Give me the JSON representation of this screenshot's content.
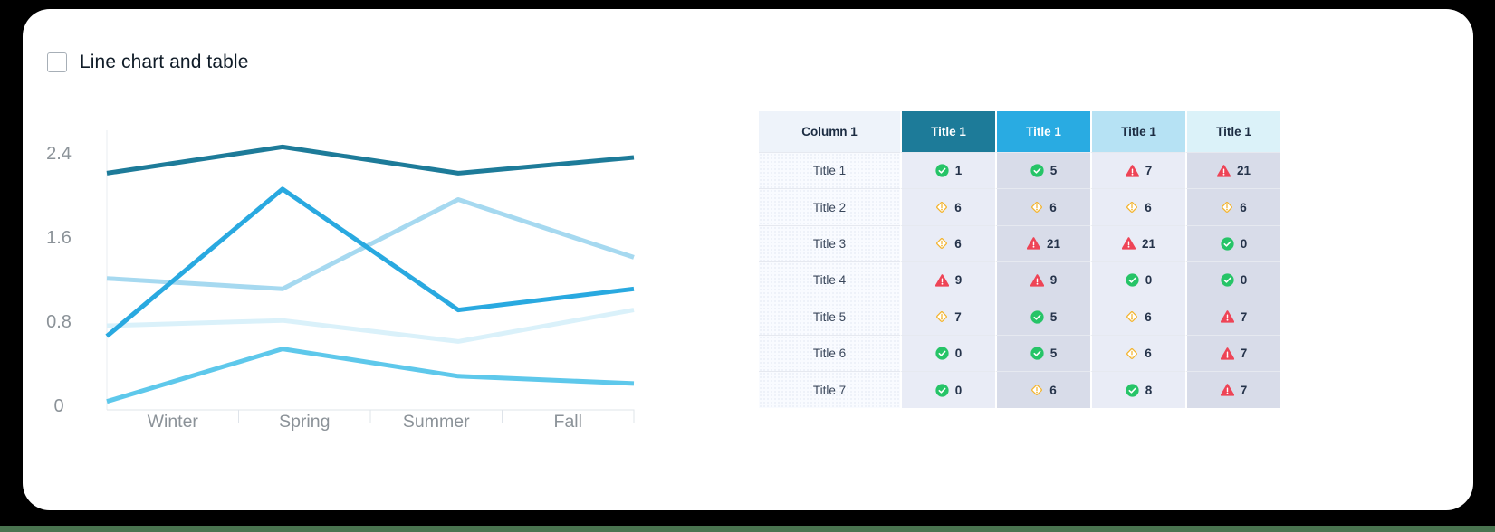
{
  "header": {
    "title": "Line chart and table",
    "checkbox_checked": false
  },
  "chart_data": {
    "type": "line",
    "categories": [
      "Winter",
      "Spring",
      "Summer",
      "Fall"
    ],
    "series": [
      {
        "name": "series-1",
        "color": "#1d7b99",
        "values": [
          2.25,
          2.5,
          2.25,
          2.4
        ]
      },
      {
        "name": "series-2",
        "color": "#29a9e0",
        "values": [
          0.7,
          2.1,
          0.95,
          1.15
        ]
      },
      {
        "name": "series-3",
        "color": "#a6d9f0",
        "values": [
          1.25,
          1.15,
          2.0,
          1.45
        ]
      },
      {
        "name": "series-4",
        "color": "#daf1fa",
        "values": [
          0.8,
          0.85,
          0.65,
          0.95
        ]
      },
      {
        "name": "series-5",
        "color": "#5ec8eb",
        "values": [
          0.08,
          0.58,
          0.32,
          0.25
        ]
      }
    ],
    "yticks": [
      0,
      0.8,
      1.6,
      2.4
    ],
    "ylim": [
      0,
      2.65
    ],
    "xlabel": "",
    "ylabel": "",
    "grid": false,
    "legend": "none"
  },
  "table": {
    "columns": [
      {
        "label": "Column 1",
        "header_bg": "#eef3fa",
        "header_text": "#1c2c42",
        "body_bg": "#f9fbff",
        "dotted": true
      },
      {
        "label": "Title 1",
        "header_bg": "#1d7b99",
        "header_text": "#ffffff",
        "body_bg": "#e9ecf6",
        "dotted": false
      },
      {
        "label": "Title 1",
        "header_bg": "#29abe2",
        "header_text": "#ffffff",
        "body_bg": "#d8dce9",
        "dotted": false
      },
      {
        "label": "Title 1",
        "header_bg": "#b6e2f4",
        "header_text": "#1c2c42",
        "body_bg": "#e9ecf6",
        "dotted": true
      },
      {
        "label": "Title 1",
        "header_bg": "#dbf2f9",
        "header_text": "#1c2c42",
        "body_bg": "#d8dce9",
        "dotted": true
      }
    ],
    "rows": [
      {
        "label": "Title 1",
        "cells": [
          {
            "icon": "check",
            "value": "1"
          },
          {
            "icon": "check",
            "value": "5"
          },
          {
            "icon": "alert",
            "value": "7"
          },
          {
            "icon": "alert",
            "value": "21"
          }
        ]
      },
      {
        "label": "Title 2",
        "cells": [
          {
            "icon": "warning",
            "value": "6"
          },
          {
            "icon": "warning",
            "value": "6"
          },
          {
            "icon": "warning",
            "value": "6"
          },
          {
            "icon": "warning",
            "value": "6"
          }
        ]
      },
      {
        "label": "Title 3",
        "cells": [
          {
            "icon": "warning",
            "value": "6"
          },
          {
            "icon": "alert",
            "value": "21"
          },
          {
            "icon": "alert",
            "value": "21"
          },
          {
            "icon": "check",
            "value": "0"
          }
        ]
      },
      {
        "label": "Title 4",
        "cells": [
          {
            "icon": "alert",
            "value": "9"
          },
          {
            "icon": "alert",
            "value": "9"
          },
          {
            "icon": "check",
            "value": "0"
          },
          {
            "icon": "check",
            "value": "0"
          }
        ]
      },
      {
        "label": "Title 5",
        "cells": [
          {
            "icon": "warning",
            "value": "7"
          },
          {
            "icon": "check",
            "value": "5"
          },
          {
            "icon": "warning",
            "value": "6"
          },
          {
            "icon": "alert",
            "value": "7"
          }
        ]
      },
      {
        "label": "Title 6",
        "cells": [
          {
            "icon": "check",
            "value": "0"
          },
          {
            "icon": "check",
            "value": "5"
          },
          {
            "icon": "warning",
            "value": "6"
          },
          {
            "icon": "alert",
            "value": "7"
          }
        ]
      },
      {
        "label": "Title 7",
        "cells": [
          {
            "icon": "check",
            "value": "0"
          },
          {
            "icon": "warning",
            "value": "6"
          },
          {
            "icon": "check",
            "value": "8"
          },
          {
            "icon": "alert",
            "value": "7"
          }
        ]
      }
    ],
    "icon_colors": {
      "check": "#26c467",
      "warning": "#f3b32c",
      "alert": "#ee4456"
    }
  },
  "colors": {
    "background": "#000000",
    "card": "#ffffff",
    "footer_strip": "#4a7450",
    "axis_text": "#8b9298",
    "axis_line": "#dfe4ea",
    "cell_value_text": "#25334a",
    "row_separator": "#e6e9f0"
  }
}
